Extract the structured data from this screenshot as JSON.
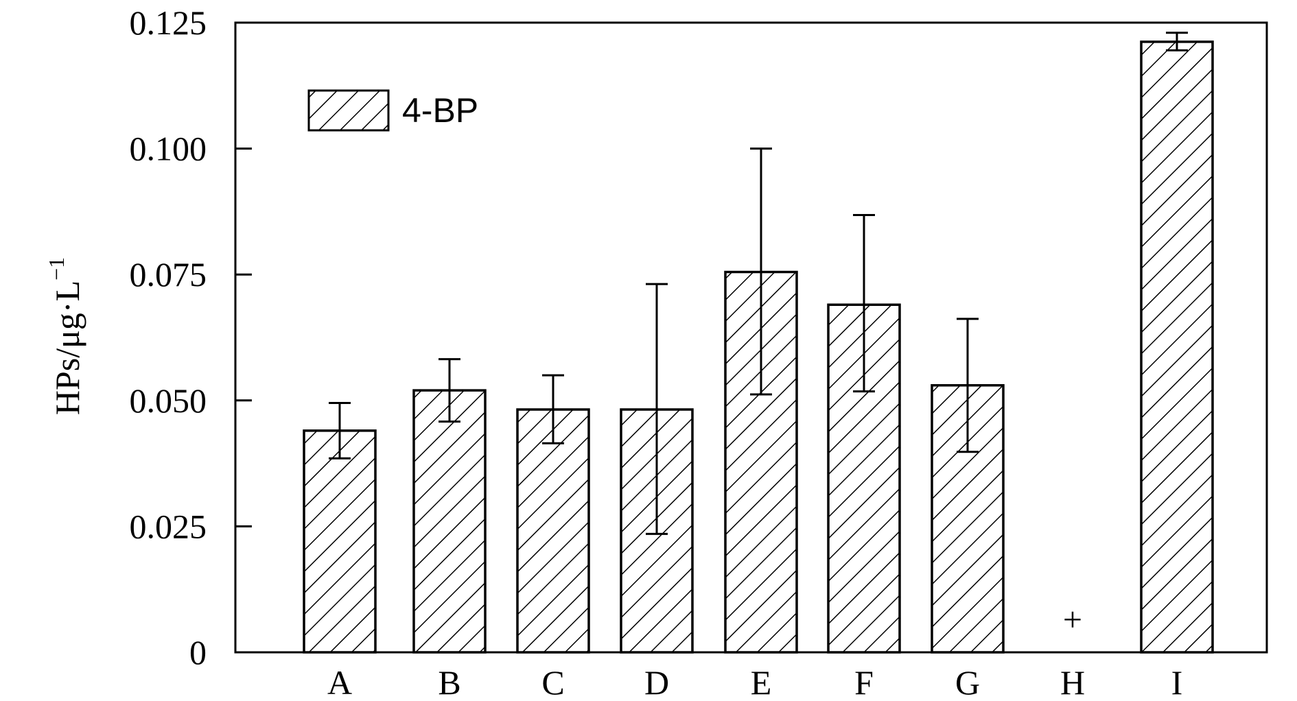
{
  "chart_data": {
    "type": "bar",
    "categories": [
      "A",
      "B",
      "C",
      "D",
      "E",
      "F",
      "G",
      "H",
      "I"
    ],
    "series": [
      {
        "name": "4-BP",
        "values": [
          0.044,
          0.052,
          0.0482,
          0.0482,
          0.0755,
          0.069,
          0.053,
          null,
          0.1212
        ],
        "error_upper": [
          0.0495,
          0.0582,
          0.055,
          0.0731,
          0.1,
          0.0868,
          0.0662,
          null,
          0.123
        ],
        "error_lower": [
          0.0385,
          0.0458,
          0.0415,
          0.0235,
          0.0512,
          0.0518,
          0.0398,
          null,
          0.1195
        ]
      }
    ],
    "annotations": [
      {
        "category": "H",
        "text": "+"
      }
    ],
    "title": "",
    "xlabel": "",
    "ylabel_main": "HPs/μg·L",
    "ylabel_sup": "−1",
    "ylim": [
      0,
      0.125
    ],
    "yticks": [
      0,
      0.025,
      0.05,
      0.075,
      0.1,
      0.125
    ],
    "ytick_labels": [
      "0",
      "0.025",
      "0.050",
      "0.075",
      "0.100",
      "0.125"
    ],
    "bar_fill": "hatched-diagonal",
    "grid": false,
    "legend_position": "top-left",
    "colors": {
      "bar_stroke": "#000000",
      "background": "#ffffff"
    }
  }
}
